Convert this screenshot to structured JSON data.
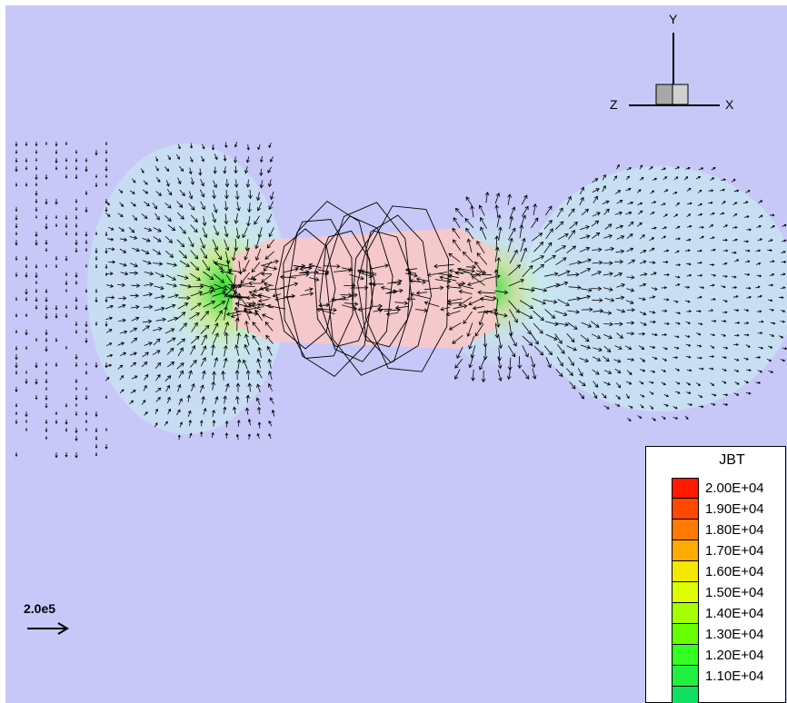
{
  "axes_triad": {
    "y_label": "Y",
    "x_label": "X",
    "z_label": "Z"
  },
  "legend": {
    "title": "JBT",
    "entries": [
      {
        "label": "2.00E+04",
        "color": "#ff1a00"
      },
      {
        "label": "1.90E+04",
        "color": "#ff4800"
      },
      {
        "label": "1.80E+04",
        "color": "#ff7a00"
      },
      {
        "label": "1.70E+04",
        "color": "#ffaa00"
      },
      {
        "label": "1.60E+04",
        "color": "#f5e800"
      },
      {
        "label": "1.50E+04",
        "color": "#ddff00"
      },
      {
        "label": "1.40E+04",
        "color": "#a6ff00"
      },
      {
        "label": "1.30E+04",
        "color": "#66ff00"
      },
      {
        "label": "1.20E+04",
        "color": "#33ff22"
      },
      {
        "label": "1.10E+04",
        "color": "#22f040"
      },
      {
        "label": "",
        "color": "#10e060"
      }
    ]
  },
  "scale": {
    "label": "2.0e5"
  },
  "colors": {
    "background": "#c8c8f8",
    "core": "#f8c8c8",
    "halo": "#d0ecf0"
  }
}
